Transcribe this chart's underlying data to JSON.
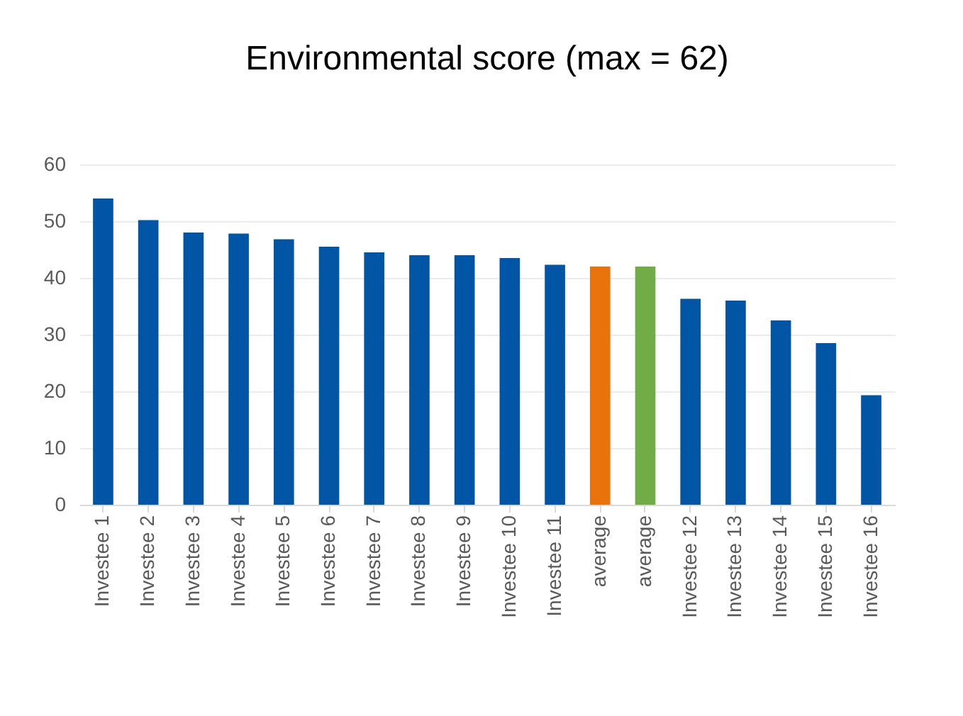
{
  "chart_data": {
    "type": "bar",
    "title": "Environmental score (max = 62)",
    "categories": [
      "Investee 1",
      "Investee 2",
      "Investee 3",
      "Investee 4",
      "Investee 5",
      "Investee 6",
      "Investee 7",
      "Investee 8",
      "Investee 9",
      "Investee 10",
      "Investee 11",
      "average",
      "average",
      "Investee 12",
      "Investee 13",
      "Investee 14",
      "Investee 15",
      "Investee 16"
    ],
    "values": [
      54,
      50.2,
      48,
      47.8,
      46.8,
      45.5,
      44.5,
      44,
      44,
      43.5,
      42.3,
      42,
      42,
      36.3,
      36,
      32.5,
      28.5,
      19.3
    ],
    "colors": [
      "#0055a5",
      "#0055a5",
      "#0055a5",
      "#0055a5",
      "#0055a5",
      "#0055a5",
      "#0055a5",
      "#0055a5",
      "#0055a5",
      "#0055a5",
      "#0055a5",
      "#e8720c",
      "#70ad47",
      "#0055a5",
      "#0055a5",
      "#0055a5",
      "#0055a5",
      "#0055a5"
    ],
    "ylim": [
      0,
      60
    ],
    "yticks": [
      0,
      10,
      20,
      30,
      40,
      50,
      60
    ],
    "grid": "y"
  }
}
